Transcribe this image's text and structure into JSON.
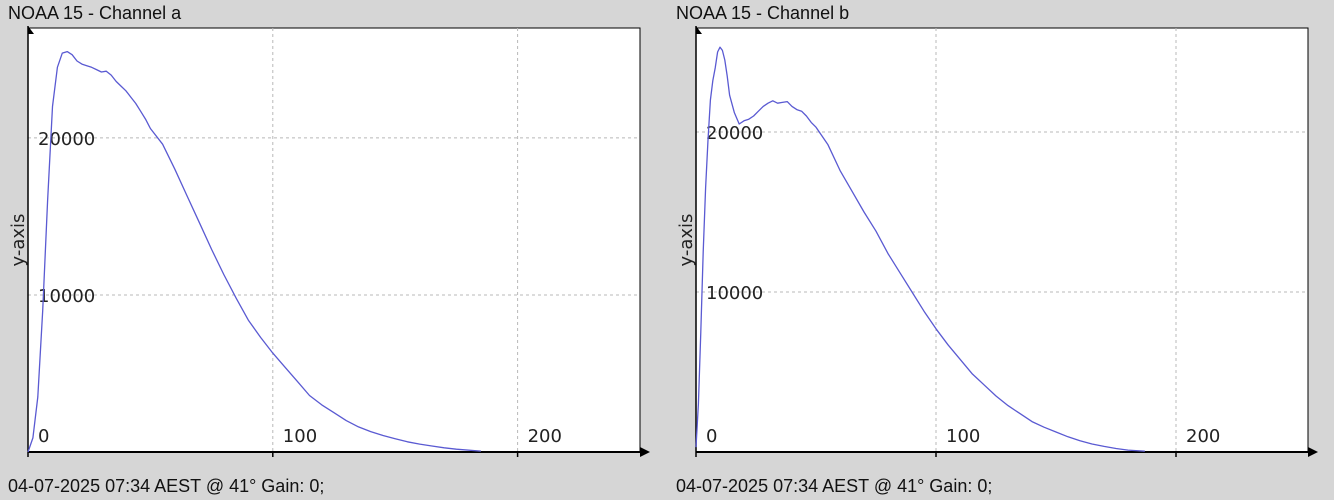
{
  "chart_data": [
    {
      "type": "line",
      "title": "NOAA 15 - Channel a",
      "footer": "04-07-2025 07:34 AEST @ 41° Gain: 0;",
      "xlabel": "",
      "ylabel": "y-axis",
      "xlim": [
        0,
        250
      ],
      "ylim": [
        0,
        27000
      ],
      "xticks": [
        0,
        100,
        200
      ],
      "yticks": [
        10000,
        20000
      ],
      "grid": true,
      "line_color": "#5a5ad2",
      "series": [
        {
          "x": [
            0,
            2,
            4,
            6,
            8,
            10,
            12,
            14,
            16,
            18,
            20,
            22,
            24,
            26,
            28,
            30,
            32,
            34,
            36,
            38,
            40,
            42,
            44,
            46,
            48,
            50,
            55,
            60,
            65,
            70,
            75,
            80,
            85,
            90,
            95,
            100,
            105,
            110,
            115,
            120,
            125,
            130,
            135,
            140,
            145,
            150,
            155,
            160,
            165,
            170,
            175,
            185
          ],
          "y": [
            0,
            900,
            3500,
            9000,
            16000,
            22000,
            24500,
            25400,
            25500,
            25300,
            24900,
            24700,
            24600,
            24500,
            24350,
            24200,
            24250,
            24000,
            23600,
            23300,
            23000,
            22600,
            22200,
            21700,
            21200,
            20600,
            19600,
            18000,
            16300,
            14600,
            12900,
            11300,
            9800,
            8400,
            7300,
            6300,
            5400,
            4500,
            3600,
            3000,
            2500,
            2000,
            1600,
            1300,
            1050,
            850,
            650,
            500,
            380,
            270,
            180,
            60
          ]
        }
      ]
    },
    {
      "type": "line",
      "title": "NOAA 15 - Channel b",
      "footer": "04-07-2025 07:34 AEST @ 41° Gain: 0;",
      "xlabel": "",
      "ylabel": "y-axis",
      "xlim": [
        0,
        255
      ],
      "ylim": [
        0,
        26500
      ],
      "xticks": [
        0,
        100,
        200
      ],
      "yticks": [
        10000,
        20000
      ],
      "grid": true,
      "line_color": "#5a5ad2",
      "series": [
        {
          "x": [
            0,
            1,
            2,
            3,
            4,
            5,
            6,
            7,
            8,
            9,
            10,
            11,
            12,
            13,
            14,
            16,
            18,
            20,
            22,
            24,
            26,
            28,
            30,
            32,
            34,
            36,
            38,
            40,
            42,
            44,
            46,
            48,
            50,
            55,
            60,
            65,
            70,
            75,
            80,
            85,
            90,
            95,
            100,
            105,
            110,
            115,
            120,
            125,
            130,
            135,
            140,
            145,
            150,
            155,
            160,
            165,
            170,
            175,
            180,
            187
          ],
          "y": [
            300,
            3000,
            7500,
            12500,
            16500,
            19500,
            22000,
            23200,
            24000,
            25000,
            25300,
            25100,
            24500,
            23500,
            22300,
            21200,
            20500,
            20700,
            20800,
            21000,
            21300,
            21600,
            21800,
            21950,
            21800,
            21850,
            21900,
            21600,
            21400,
            21300,
            21000,
            20600,
            20300,
            19200,
            17600,
            16300,
            15000,
            13800,
            12400,
            11200,
            10000,
            8800,
            7700,
            6700,
            5800,
            4900,
            4200,
            3500,
            2900,
            2400,
            1900,
            1550,
            1250,
            950,
            700,
            500,
            350,
            220,
            120,
            50
          ]
        }
      ]
    }
  ]
}
